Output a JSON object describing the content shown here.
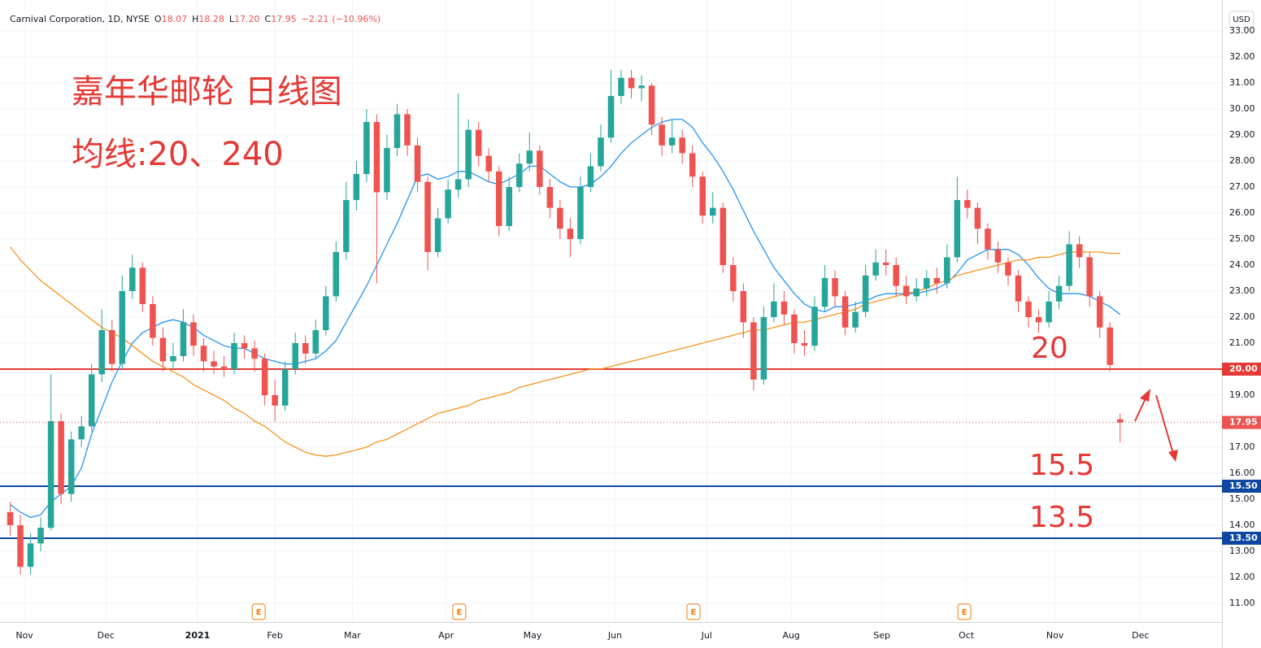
{
  "chart_data": {
    "type": "candlestick",
    "header": {
      "symbol": "Carnival Corporation, 1D, NYSE",
      "ohlc_keys": [
        "O",
        "H",
        "L",
        "C"
      ],
      "ohlc_values": [
        18.07,
        18.28,
        {
          "value": 17.2,
          "label": "17.20"
        },
        17.95
      ],
      "change": {
        "value": -2.21,
        "label": "−2.21"
      },
      "change_pct": {
        "value": -10.96,
        "label": "(−10.96%)"
      }
    },
    "title": "嘉年华邮轮 日线图",
    "subtitle": "均线:20、240",
    "currency": "USD",
    "up_color": "#26a69a",
    "down_color": "#ef5350",
    "xlim": [
      -1,
      119
    ],
    "xticks": [
      {
        "value": 1.4,
        "label": "Nov"
      },
      {
        "value": 9.4,
        "label": "Dec"
      },
      {
        "value": 18.4,
        "label": "2021"
      },
      {
        "value": 26.0,
        "label": "Feb"
      },
      {
        "value": 33.6,
        "label": "Mar"
      },
      {
        "value": 42.8,
        "label": "Apr"
      },
      {
        "value": 51.3,
        "label": "May"
      },
      {
        "value": 59.4,
        "label": "Jun"
      },
      {
        "value": 68.4,
        "label": "Jul"
      },
      {
        "value": 76.7,
        "label": "Aug"
      },
      {
        "value": 85.6,
        "label": "Sep"
      },
      {
        "value": 93.9,
        "label": "Oct"
      },
      {
        "value": 102.6,
        "label": "Nov"
      },
      {
        "value": 111.0,
        "label": "Dec"
      }
    ],
    "ylim": [
      10.28,
      34.19
    ],
    "yticks": [
      {
        "value": 11,
        "label": "11.00"
      },
      {
        "value": 12,
        "label": "12.00"
      },
      {
        "value": 13,
        "label": "13.00"
      },
      {
        "value": 14,
        "label": "14.00"
      },
      {
        "value": 15,
        "label": "15.00"
      },
      {
        "value": 16,
        "label": "16.00"
      },
      {
        "value": 17,
        "label": "17.00"
      },
      {
        "value": 18,
        "label": "18.00"
      },
      {
        "value": 19,
        "label": "19.00"
      },
      {
        "value": 20,
        "label": "20.00"
      },
      {
        "value": 21,
        "label": "21.00"
      },
      {
        "value": 22,
        "label": "22.00"
      },
      {
        "value": 23,
        "label": "23.00"
      },
      {
        "value": 24,
        "label": "24.00"
      },
      {
        "value": 25,
        "label": "25.00"
      },
      {
        "value": 26,
        "label": "26.00"
      },
      {
        "value": 27,
        "label": "27.00"
      },
      {
        "value": 28,
        "label": "28.00"
      },
      {
        "value": 29,
        "label": "29.00"
      },
      {
        "value": 30,
        "label": "30.00"
      },
      {
        "value": 31,
        "label": "31.00"
      },
      {
        "value": 32,
        "label": "32.00"
      },
      {
        "value": 33,
        "label": "33.00"
      }
    ],
    "grid": true,
    "open": [
      14.5,
      14.0,
      12.4,
      13.3,
      13.9,
      18.0,
      15.2,
      17.3,
      17.8,
      19.8,
      21.5,
      20.2,
      23.0,
      23.9,
      22.5,
      21.2,
      20.3,
      20.5,
      21.8,
      20.9,
      20.3,
      20.1,
      20.0,
      21.0,
      20.8,
      20.4,
      19.0,
      18.6,
      20.0,
      21.0,
      20.6,
      21.5,
      22.8,
      24.5,
      26.5,
      27.5,
      29.5,
      26.8,
      28.5,
      29.8,
      28.6,
      27.2,
      24.5,
      25.8,
      26.9,
      27.3,
      29.2,
      28.2,
      27.6,
      25.5,
      27.0,
      27.9,
      28.4,
      27.0,
      26.2,
      25.4,
      25.0,
      27.0,
      27.8,
      28.9,
      30.5,
      31.2,
      30.8,
      30.9,
      29.4,
      28.6,
      28.9,
      28.3,
      27.4,
      25.9,
      26.2,
      24.0,
      23.0,
      21.8,
      19.6,
      22.0,
      22.6,
      22.1,
      21.0,
      20.9,
      22.4,
      23.5,
      22.8,
      21.6,
      22.2,
      23.6,
      24.1,
      24.0,
      23.2,
      22.8,
      23.1,
      23.5,
      23.3,
      24.3,
      26.5,
      26.2,
      25.4,
      24.6,
      24.1,
      23.6,
      22.6,
      22.0,
      21.8,
      22.6,
      23.2,
      24.8,
      24.3,
      22.8,
      21.6,
      18.07
    ],
    "high": [
      14.9,
      14.4,
      13.7,
      14.3,
      19.8,
      18.3,
      17.6,
      18.2,
      20.2,
      22.3,
      21.9,
      23.6,
      24.4,
      24.1,
      22.8,
      21.6,
      21.0,
      22.3,
      22.1,
      21.2,
      20.7,
      20.5,
      21.4,
      21.3,
      21.1,
      20.6,
      19.6,
      20.3,
      21.4,
      21.3,
      21.9,
      23.2,
      24.9,
      27.2,
      28.0,
      30.0,
      29.8,
      29.0,
      30.2,
      30.0,
      28.9,
      27.4,
      26.2,
      27.3,
      30.6,
      29.6,
      29.5,
      28.5,
      27.8,
      27.4,
      28.3,
      29.1,
      28.6,
      27.3,
      26.5,
      25.8,
      27.4,
      28.3,
      29.4,
      31.5,
      31.5,
      31.5,
      31.3,
      31.0,
      29.7,
      29.6,
      29.2,
      28.6,
      27.6,
      26.8,
      26.4,
      24.3,
      23.3,
      22.0,
      22.4,
      23.3,
      23.0,
      22.3,
      21.5,
      22.8,
      24.0,
      23.8,
      23.0,
      22.6,
      24.0,
      24.6,
      24.6,
      24.3,
      23.6,
      23.5,
      23.8,
      23.9,
      24.8,
      27.4,
      26.9,
      26.4,
      25.6,
      24.9,
      24.3,
      23.8,
      22.8,
      22.3,
      23.0,
      23.6,
      25.3,
      25.1,
      24.5,
      23.0,
      21.8,
      18.28
    ],
    "low": [
      13.6,
      12.1,
      12.1,
      13.0,
      13.8,
      14.8,
      14.9,
      17.0,
      17.6,
      19.5,
      19.9,
      20.0,
      22.7,
      22.2,
      20.9,
      19.9,
      20.0,
      20.3,
      20.5,
      19.9,
      19.8,
      19.7,
      19.8,
      20.4,
      19.9,
      18.6,
      18.0,
      18.4,
      19.8,
      20.2,
      20.4,
      21.3,
      22.6,
      24.2,
      26.1,
      27.2,
      23.3,
      26.5,
      28.2,
      28.2,
      26.8,
      23.8,
      24.3,
      25.6,
      26.6,
      27.0,
      27.8,
      27.2,
      25.1,
      25.3,
      26.8,
      27.6,
      26.7,
      25.8,
      25.0,
      24.3,
      24.8,
      26.8,
      27.6,
      28.7,
      30.2,
      30.4,
      30.3,
      29.0,
      28.2,
      28.3,
      27.9,
      27.0,
      25.6,
      25.6,
      23.7,
      22.6,
      21.2,
      19.2,
      19.4,
      21.8,
      21.7,
      20.6,
      20.5,
      20.7,
      22.2,
      22.4,
      21.3,
      21.4,
      22.0,
      23.4,
      23.6,
      22.8,
      22.5,
      22.6,
      22.8,
      22.9,
      23.1,
      24.1,
      25.8,
      24.8,
      24.2,
      23.7,
      23.2,
      22.2,
      21.6,
      21.4,
      21.6,
      22.3,
      23.0,
      23.9,
      22.4,
      21.2,
      19.9,
      17.2
    ],
    "close": [
      14.0,
      12.4,
      13.3,
      13.9,
      18.0,
      15.2,
      17.3,
      17.8,
      19.8,
      21.5,
      20.2,
      23.0,
      23.9,
      22.5,
      21.2,
      20.3,
      20.5,
      21.8,
      20.9,
      20.3,
      20.1,
      20.0,
      21.0,
      20.8,
      20.4,
      19.0,
      18.6,
      20.0,
      21.0,
      20.6,
      21.5,
      22.8,
      24.5,
      26.5,
      27.5,
      29.5,
      26.8,
      28.5,
      29.8,
      28.6,
      27.2,
      24.5,
      25.8,
      26.9,
      27.3,
      29.2,
      28.2,
      27.6,
      25.5,
      27.0,
      27.9,
      28.4,
      27.0,
      26.2,
      25.4,
      25.0,
      27.0,
      27.8,
      28.9,
      30.5,
      31.2,
      30.8,
      30.9,
      29.4,
      28.6,
      28.9,
      28.3,
      27.4,
      25.9,
      26.2,
      24.0,
      23.0,
      21.8,
      19.6,
      22.0,
      22.6,
      22.1,
      21.0,
      20.9,
      22.4,
      23.5,
      22.8,
      21.6,
      22.2,
      23.6,
      24.1,
      24.0,
      23.2,
      22.8,
      23.1,
      23.5,
      23.3,
      24.3,
      26.5,
      26.2,
      25.4,
      24.6,
      24.1,
      23.6,
      22.6,
      22.0,
      21.8,
      22.6,
      23.2,
      24.8,
      24.3,
      22.8,
      21.6,
      20.16,
      17.95
    ],
    "ma_lines": [
      {
        "color": "#2196f3",
        "values": [
          14.8,
          14.5,
          14.3,
          14.4,
          14.9,
          15.2,
          15.5,
          16.2,
          17.5,
          18.5,
          19.5,
          20.3,
          21.0,
          21.4,
          21.6,
          21.8,
          21.9,
          21.8,
          21.6,
          21.3,
          21.1,
          20.9,
          20.8,
          20.8,
          20.6,
          20.4,
          20.3,
          20.2,
          20.2,
          20.3,
          20.4,
          20.7,
          21.1,
          21.8,
          22.5,
          23.2,
          24.0,
          24.8,
          25.6,
          26.5,
          27.4,
          27.5,
          27.3,
          27.4,
          27.6,
          27.6,
          27.4,
          27.2,
          27.1,
          27.3,
          27.5,
          27.8,
          27.8,
          27.5,
          27.2,
          27.0,
          27.0,
          27.1,
          27.4,
          27.8,
          28.3,
          28.7,
          29.0,
          29.3,
          29.5,
          29.6,
          29.6,
          29.3,
          28.7,
          28.2,
          27.6,
          26.9,
          26.1,
          25.3,
          24.6,
          23.9,
          23.4,
          22.9,
          22.5,
          22.3,
          22.2,
          22.4,
          22.4,
          22.5,
          22.6,
          22.8,
          22.9,
          22.9,
          22.9,
          22.9,
          23.0,
          23.1,
          23.3,
          23.7,
          24.2,
          24.4,
          24.6,
          24.6,
          24.6,
          24.4,
          24.0,
          23.5,
          23.1,
          22.9,
          22.9,
          22.9,
          22.8,
          22.6,
          22.4,
          22.1
        ]
      },
      {
        "color": "#f7931e",
        "values": [
          24.7,
          24.2,
          23.8,
          23.4,
          23.1,
          22.8,
          22.5,
          22.2,
          21.9,
          21.6,
          21.4,
          21.2,
          20.9,
          20.6,
          20.3,
          20.1,
          19.9,
          19.7,
          19.4,
          19.2,
          19.0,
          18.8,
          18.5,
          18.3,
          18.0,
          17.8,
          17.5,
          17.2,
          17.0,
          16.8,
          16.7,
          16.65,
          16.7,
          16.8,
          16.9,
          17.0,
          17.2,
          17.3,
          17.5,
          17.7,
          17.9,
          18.1,
          18.3,
          18.4,
          18.5,
          18.6,
          18.8,
          18.9,
          19.0,
          19.1,
          19.3,
          19.4,
          19.5,
          19.6,
          19.7,
          19.8,
          19.9,
          20.0,
          20.0,
          20.1,
          20.2,
          20.3,
          20.4,
          20.5,
          20.6,
          20.7,
          20.8,
          20.9,
          21.0,
          21.1,
          21.2,
          21.3,
          21.4,
          21.5,
          21.5,
          21.6,
          21.7,
          21.8,
          21.8,
          21.9,
          22.0,
          22.1,
          22.2,
          22.3,
          22.5,
          22.6,
          22.7,
          22.8,
          22.9,
          23.0,
          23.1,
          23.3,
          23.4,
          23.6,
          23.7,
          23.8,
          23.9,
          24.0,
          24.1,
          24.2,
          24.2,
          24.3,
          24.3,
          24.4,
          24.5,
          24.5,
          24.5,
          24.5,
          24.45,
          24.45
        ]
      }
    ],
    "levels": [
      {
        "value": 20,
        "label": "20.00",
        "color": "#e53935"
      },
      {
        "value": 15.5,
        "label": "15.50",
        "color": "#0d47a1"
      },
      {
        "value": 13.5,
        "label": "13.50",
        "color": "#0d47a1"
      }
    ],
    "level_annotations": [
      20,
      15.5,
      13.5
    ],
    "last_price": {
      "value": 17.95,
      "label": "17.95",
      "color": "#ef5350"
    },
    "earnings": [
      {
        "x": 24.4,
        "label": "E"
      },
      {
        "x": 44.1,
        "label": "E"
      },
      {
        "x": 67.1,
        "label": "E"
      },
      {
        "x": 93.7,
        "label": "E"
      }
    ]
  }
}
